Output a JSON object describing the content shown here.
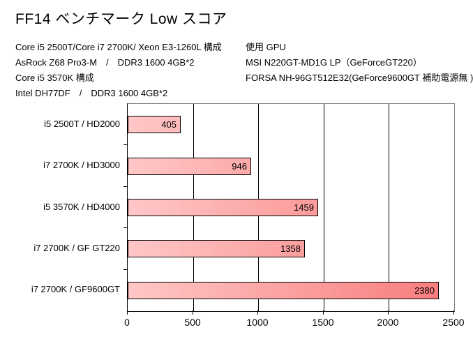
{
  "title": "FF14 ベンチマーク Low スコア",
  "system_info": {
    "left_lines": [
      "Core i5 2500T/Core i7 2700K/ Xeon E3-1260L 構成",
      "AsRock Z68 Pro3-M　/　DDR3 1600 4GB*2",
      "Core i5 3570K 構成",
      "Intel DH77DF　/　DDR3 1600 4GB*2"
    ],
    "right_lines": [
      "使用 GPU",
      "MSI N220GT-MD1G LP（GeForceGT220）",
      "FORSA NH-96GT512E32(GeForce9600GT 補助電源無 )"
    ]
  },
  "chart_data": {
    "type": "bar",
    "orientation": "horizontal",
    "title": "FF14 ベンチマーク Low スコア",
    "categories": [
      "i5 2500T / HD2000",
      "i7 2700K / HD3000",
      "i5 3570K / HD4000",
      "i7 2700K / GF GT220",
      "i7 2700K / GF9600GT"
    ],
    "values": [
      405,
      946,
      1459,
      1358,
      2380
    ],
    "value_labels": [
      "405",
      "946",
      "1459",
      "1358",
      "2380"
    ],
    "xlabel": "",
    "ylabel": "",
    "xlim": [
      0,
      2500
    ],
    "x_ticks": [
      "0",
      "500",
      "1000",
      "1500",
      "2000",
      "2500"
    ],
    "x_tick_values": [
      0,
      500,
      1000,
      1500,
      2000,
      2500
    ],
    "grid": true,
    "legend": false,
    "colors": {
      "bar_gradient_start": "#FFC7C7",
      "bar_gradient_end": "#F87A7A",
      "bar_border": "#000000",
      "gridline": "#000000",
      "plot_border": "#808080",
      "axis": "#000000",
      "text": "#000000",
      "background": "#ffffff"
    }
  }
}
